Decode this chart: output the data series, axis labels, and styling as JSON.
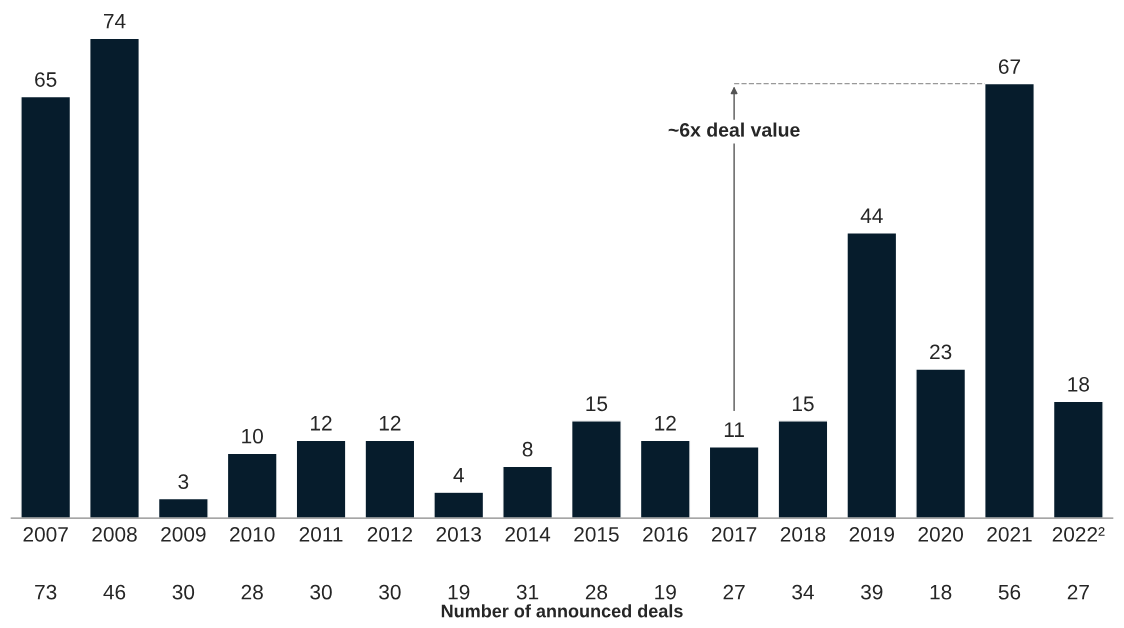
{
  "chart_data": {
    "type": "bar",
    "categories": [
      "2007",
      "2008",
      "2009",
      "2010",
      "2011",
      "2012",
      "2013",
      "2014",
      "2015",
      "2016",
      "2017",
      "2018",
      "2019",
      "2020",
      "2021",
      "2022²"
    ],
    "values": [
      65,
      74,
      3,
      10,
      12,
      12,
      4,
      8,
      15,
      12,
      11,
      15,
      44,
      23,
      67,
      18
    ],
    "color": "#061c2c",
    "data_labels": true,
    "xlabel": "Number of announced deals",
    "ref_lines": [
      {
        "axis": "y",
        "value": 67,
        "label": "~6x deal value",
        "line_style": "dashed",
        "color": "#999999"
      }
    ],
    "annotations": [
      "73",
      "46",
      "30",
      "28",
      "30",
      "30",
      "19",
      "31",
      "28",
      "19",
      "27",
      "34",
      "39",
      "18",
      "56",
      "27"
    ]
  }
}
